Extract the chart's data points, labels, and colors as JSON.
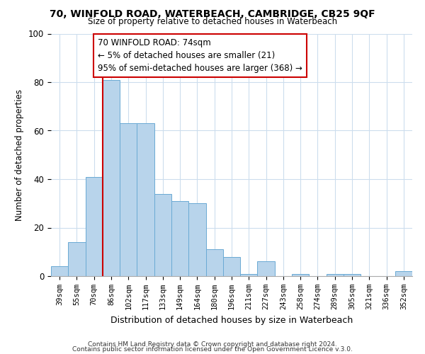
{
  "title": "70, WINFOLD ROAD, WATERBEACH, CAMBRIDGE, CB25 9QF",
  "subtitle": "Size of property relative to detached houses in Waterbeach",
  "xlabel": "Distribution of detached houses by size in Waterbeach",
  "ylabel": "Number of detached properties",
  "bin_labels": [
    "39sqm",
    "55sqm",
    "70sqm",
    "86sqm",
    "102sqm",
    "117sqm",
    "133sqm",
    "149sqm",
    "164sqm",
    "180sqm",
    "196sqm",
    "211sqm",
    "227sqm",
    "243sqm",
    "258sqm",
    "274sqm",
    "289sqm",
    "305sqm",
    "321sqm",
    "336sqm",
    "352sqm"
  ],
  "bar_heights": [
    4,
    14,
    41,
    81,
    63,
    63,
    34,
    31,
    30,
    11,
    8,
    1,
    6,
    0,
    1,
    0,
    1,
    1,
    0,
    0,
    2
  ],
  "bar_color": "#b8d4eb",
  "bar_edge_color": "#6aaad4",
  "vline_color": "#cc0000",
  "annotation_title": "70 WINFOLD ROAD: 74sqm",
  "annotation_line1": "← 5% of detached houses are smaller (21)",
  "annotation_line2": "95% of semi-detached houses are larger (368) →",
  "annotation_box_color": "#ffffff",
  "annotation_box_edge": "#cc0000",
  "ylim": [
    0,
    100
  ],
  "footer1": "Contains HM Land Registry data © Crown copyright and database right 2024.",
  "footer2": "Contains public sector information licensed under the Open Government Licence v.3.0.",
  "background_color": "#ffffff",
  "grid_color": "#ccdded"
}
